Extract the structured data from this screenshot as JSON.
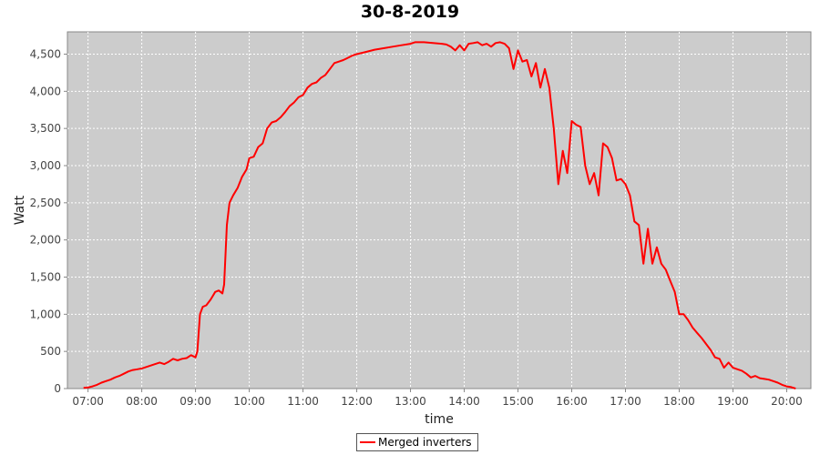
{
  "chart_data": {
    "type": "line",
    "title": "30-8-2019",
    "xlabel": "time",
    "ylabel": "Watt",
    "x_ticks": [
      "07:00",
      "08:00",
      "09:00",
      "10:00",
      "11:00",
      "12:00",
      "13:00",
      "14:00",
      "15:00",
      "16:00",
      "17:00",
      "18:00",
      "19:00",
      "20:00"
    ],
    "y_ticks": [
      "0",
      "500",
      "1,000",
      "1,500",
      "2,000",
      "2,500",
      "3,000",
      "3,500",
      "4,000",
      "4,500"
    ],
    "xlim": [
      "06:37",
      "20:27"
    ],
    "ylim": [
      0,
      4800
    ],
    "grid": true,
    "legend_position": "bottom",
    "plot_background": "#cccccc",
    "series": [
      {
        "name": "Merged inverters",
        "color": "#ff0000",
        "points": [
          [
            "06:55",
            10
          ],
          [
            "07:00",
            15
          ],
          [
            "07:05",
            30
          ],
          [
            "07:10",
            50
          ],
          [
            "07:15",
            80
          ],
          [
            "07:20",
            100
          ],
          [
            "07:25",
            120
          ],
          [
            "07:30",
            150
          ],
          [
            "07:35",
            170
          ],
          [
            "07:40",
            200
          ],
          [
            "07:45",
            230
          ],
          [
            "07:50",
            250
          ],
          [
            "07:55",
            260
          ],
          [
            "08:00",
            270
          ],
          [
            "08:05",
            290
          ],
          [
            "08:10",
            310
          ],
          [
            "08:15",
            330
          ],
          [
            "08:20",
            350
          ],
          [
            "08:25",
            330
          ],
          [
            "08:30",
            360
          ],
          [
            "08:35",
            400
          ],
          [
            "08:40",
            380
          ],
          [
            "08:45",
            400
          ],
          [
            "08:50",
            410
          ],
          [
            "08:55",
            450
          ],
          [
            "09:00",
            420
          ],
          [
            "09:02",
            500
          ],
          [
            "09:05",
            1000
          ],
          [
            "09:08",
            1100
          ],
          [
            "09:12",
            1120
          ],
          [
            "09:17",
            1200
          ],
          [
            "09:22",
            1300
          ],
          [
            "09:26",
            1320
          ],
          [
            "09:30",
            1280
          ],
          [
            "09:32",
            1400
          ],
          [
            "09:35",
            2200
          ],
          [
            "09:38",
            2500
          ],
          [
            "09:42",
            2600
          ],
          [
            "09:47",
            2700
          ],
          [
            "09:52",
            2850
          ],
          [
            "09:57",
            2950
          ],
          [
            "10:00",
            3100
          ],
          [
            "10:05",
            3120
          ],
          [
            "10:10",
            3250
          ],
          [
            "10:15",
            3300
          ],
          [
            "10:20",
            3500
          ],
          [
            "10:25",
            3580
          ],
          [
            "10:30",
            3600
          ],
          [
            "10:35",
            3650
          ],
          [
            "10:40",
            3720
          ],
          [
            "10:45",
            3800
          ],
          [
            "10:50",
            3850
          ],
          [
            "10:55",
            3920
          ],
          [
            "11:00",
            3950
          ],
          [
            "11:05",
            4050
          ],
          [
            "11:10",
            4100
          ],
          [
            "11:15",
            4120
          ],
          [
            "11:20",
            4180
          ],
          [
            "11:25",
            4220
          ],
          [
            "11:30",
            4300
          ],
          [
            "11:35",
            4380
          ],
          [
            "11:40",
            4400
          ],
          [
            "11:45",
            4420
          ],
          [
            "11:50",
            4450
          ],
          [
            "11:55",
            4480
          ],
          [
            "12:00",
            4500
          ],
          [
            "12:10",
            4530
          ],
          [
            "12:20",
            4560
          ],
          [
            "12:30",
            4580
          ],
          [
            "12:40",
            4600
          ],
          [
            "12:50",
            4620
          ],
          [
            "13:00",
            4640
          ],
          [
            "13:05",
            4660
          ],
          [
            "13:15",
            4660
          ],
          [
            "13:25",
            4650
          ],
          [
            "13:35",
            4640
          ],
          [
            "13:40",
            4630
          ],
          [
            "13:45",
            4600
          ],
          [
            "13:50",
            4550
          ],
          [
            "13:55",
            4620
          ],
          [
            "14:00",
            4550
          ],
          [
            "14:05",
            4640
          ],
          [
            "14:10",
            4650
          ],
          [
            "14:15",
            4660
          ],
          [
            "14:20",
            4620
          ],
          [
            "14:25",
            4640
          ],
          [
            "14:30",
            4600
          ],
          [
            "14:35",
            4650
          ],
          [
            "14:40",
            4660
          ],
          [
            "14:45",
            4640
          ],
          [
            "14:50",
            4580
          ],
          [
            "14:55",
            4300
          ],
          [
            "15:00",
            4550
          ],
          [
            "15:05",
            4400
          ],
          [
            "15:10",
            4420
          ],
          [
            "15:15",
            4200
          ],
          [
            "15:20",
            4380
          ],
          [
            "15:25",
            4050
          ],
          [
            "15:30",
            4300
          ],
          [
            "15:35",
            4050
          ],
          [
            "15:40",
            3500
          ],
          [
            "15:45",
            2750
          ],
          [
            "15:50",
            3200
          ],
          [
            "15:55",
            2900
          ],
          [
            "16:00",
            3600
          ],
          [
            "16:05",
            3550
          ],
          [
            "16:10",
            3520
          ],
          [
            "16:15",
            3000
          ],
          [
            "16:20",
            2750
          ],
          [
            "16:25",
            2900
          ],
          [
            "16:30",
            2600
          ],
          [
            "16:35",
            3300
          ],
          [
            "16:40",
            3250
          ],
          [
            "16:45",
            3100
          ],
          [
            "16:50",
            2800
          ],
          [
            "16:55",
            2820
          ],
          [
            "17:00",
            2750
          ],
          [
            "17:05",
            2600
          ],
          [
            "17:10",
            2250
          ],
          [
            "17:15",
            2200
          ],
          [
            "17:20",
            1680
          ],
          [
            "17:25",
            2150
          ],
          [
            "17:30",
            1680
          ],
          [
            "17:35",
            1900
          ],
          [
            "17:40",
            1680
          ],
          [
            "17:45",
            1600
          ],
          [
            "17:50",
            1450
          ],
          [
            "17:55",
            1300
          ],
          [
            "18:00",
            1000
          ],
          [
            "18:05",
            1000
          ],
          [
            "18:10",
            920
          ],
          [
            "18:15",
            820
          ],
          [
            "18:20",
            750
          ],
          [
            "18:25",
            680
          ],
          [
            "18:30",
            600
          ],
          [
            "18:35",
            520
          ],
          [
            "18:40",
            420
          ],
          [
            "18:45",
            400
          ],
          [
            "18:50",
            280
          ],
          [
            "18:55",
            350
          ],
          [
            "19:00",
            280
          ],
          [
            "19:05",
            260
          ],
          [
            "19:10",
            240
          ],
          [
            "19:15",
            200
          ],
          [
            "19:20",
            150
          ],
          [
            "19:25",
            170
          ],
          [
            "19:30",
            140
          ],
          [
            "19:35",
            130
          ],
          [
            "19:40",
            120
          ],
          [
            "19:45",
            100
          ],
          [
            "19:50",
            80
          ],
          [
            "19:55",
            50
          ],
          [
            "20:00",
            30
          ],
          [
            "20:05",
            20
          ],
          [
            "20:10",
            0
          ]
        ]
      }
    ]
  }
}
